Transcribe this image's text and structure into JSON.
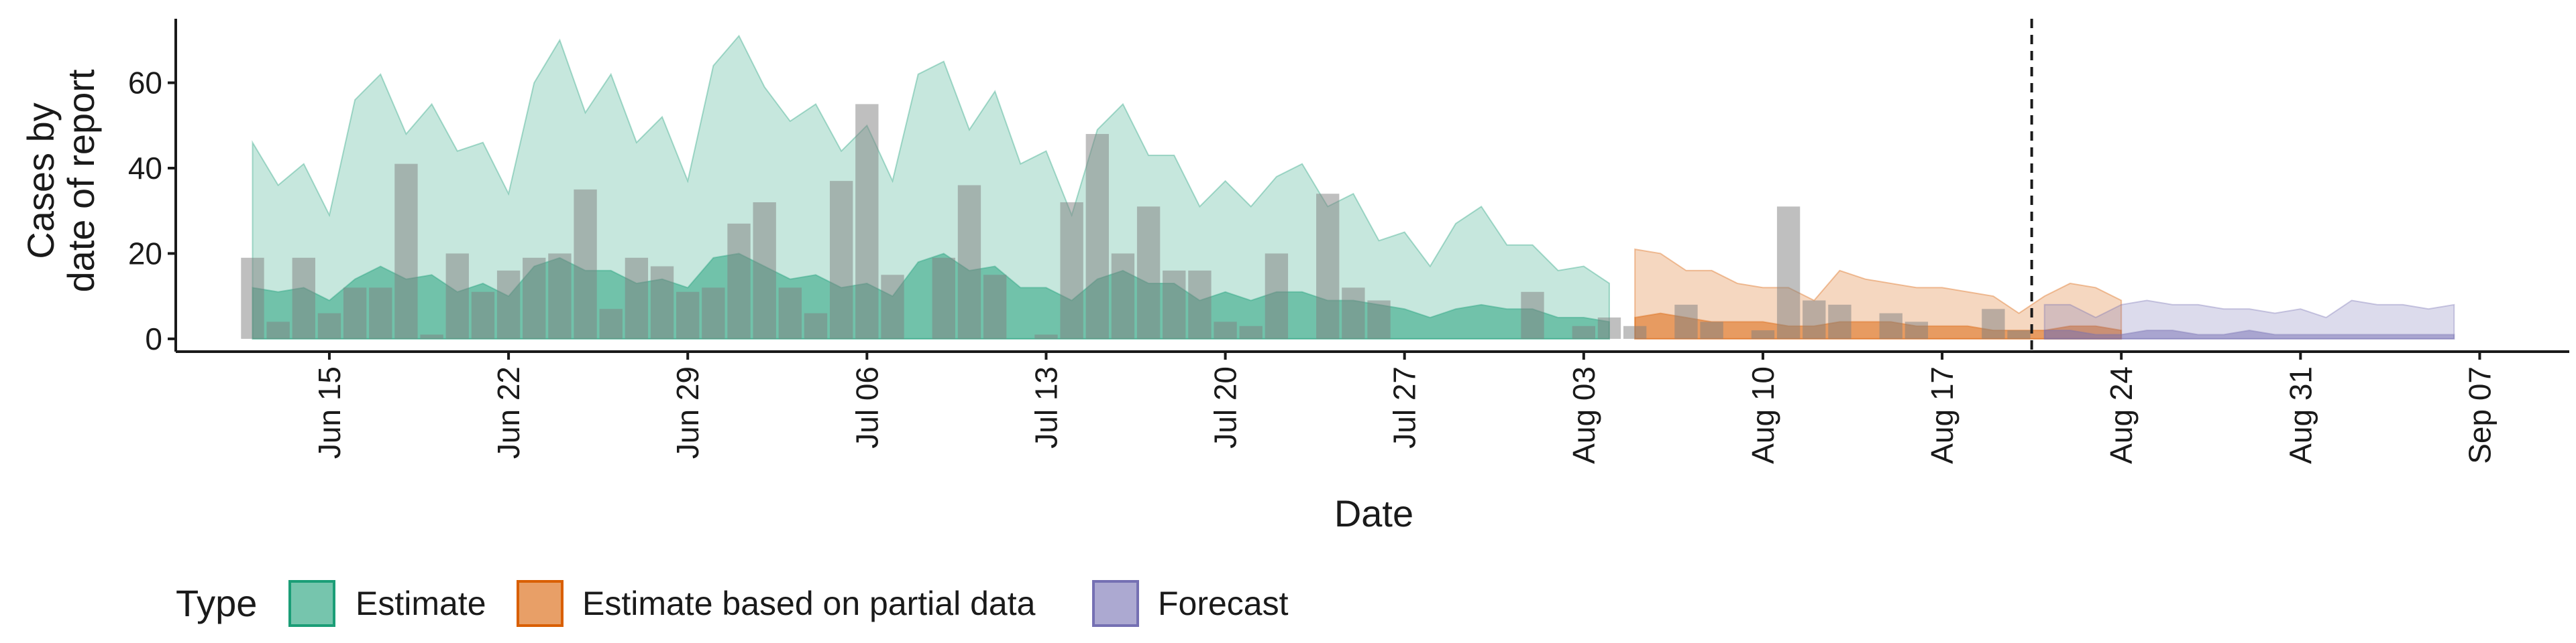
{
  "chart_data": {
    "type": "area",
    "title": "",
    "xlabel": "Date",
    "ylabel": [
      "Cases by",
      "date of report"
    ],
    "ylim": [
      -3,
      75
    ],
    "yticks": [
      0,
      20,
      40,
      60
    ],
    "x_start": "2020-06-12",
    "xlim_days": [
      -3,
      90.5
    ],
    "xticks": [
      {
        "label": "Jun 15",
        "day": 3
      },
      {
        "label": "Jun 22",
        "day": 10
      },
      {
        "label": "Jun 29",
        "day": 17
      },
      {
        "label": "Jul 06",
        "day": 24
      },
      {
        "label": "Jul 13",
        "day": 31
      },
      {
        "label": "Jul 20",
        "day": 38
      },
      {
        "label": "Jul 27",
        "day": 45
      },
      {
        "label": "Aug 03",
        "day": 52
      },
      {
        "label": "Aug 10",
        "day": 59
      },
      {
        "label": "Aug 17",
        "day": 66
      },
      {
        "label": "Aug 24",
        "day": 73
      },
      {
        "label": "Aug 31",
        "day": 80
      },
      {
        "label": "Sep 07",
        "day": 87
      }
    ],
    "forecast_divider_day": 69.5,
    "reported_cases": [
      19,
      4,
      19,
      6,
      12,
      12,
      41,
      1,
      20,
      11,
      16,
      19,
      20,
      35,
      7,
      19,
      17,
      11,
      12,
      27,
      32,
      12,
      6,
      37,
      55,
      15,
      0,
      19,
      36,
      15,
      0,
      1,
      32,
      48,
      20,
      31,
      16,
      16,
      4,
      3,
      20,
      0,
      34,
      12,
      9,
      0,
      0,
      0,
      0,
      0,
      11,
      0,
      3,
      5,
      3,
      0,
      8,
      4,
      0,
      2,
      31,
      9,
      8,
      0,
      6,
      4,
      0,
      0,
      7,
      2
    ],
    "series": [
      {
        "name": "Estimate",
        "color": "#1b9e77",
        "start_day": 0,
        "upper_90": [
          46,
          36,
          41,
          29,
          56,
          62,
          48,
          55,
          44,
          46,
          34,
          60,
          70,
          53,
          62,
          46,
          52,
          37,
          64,
          71,
          59,
          51,
          55,
          44,
          50,
          37,
          62,
          65,
          49,
          58,
          41,
          44,
          29,
          49,
          55,
          43,
          43,
          31,
          37,
          31,
          38,
          41,
          31,
          34,
          23,
          25,
          17,
          27,
          31,
          22,
          22,
          16,
          17,
          13
        ],
        "upper_50": [
          12,
          11,
          12,
          9,
          14,
          17,
          14,
          15,
          11,
          13,
          10,
          17,
          19,
          16,
          16,
          13,
          14,
          12,
          19,
          20,
          17,
          14,
          15,
          12,
          13,
          10,
          18,
          20,
          16,
          17,
          12,
          12,
          9,
          14,
          16,
          13,
          13,
          9,
          11,
          9,
          11,
          11,
          9,
          9,
          8,
          7,
          5,
          7,
          8,
          7,
          7,
          5,
          5,
          4
        ]
      },
      {
        "name": "Estimate based on partial data",
        "color": "#d95f02",
        "start_day": 54,
        "upper_90": [
          21,
          20,
          16,
          16,
          13,
          12,
          12,
          9,
          16,
          14,
          13,
          12,
          12,
          11,
          10,
          6,
          10,
          13,
          12,
          9
        ],
        "upper_50": [
          5,
          6,
          5,
          4,
          4,
          4,
          3,
          3,
          4,
          4,
          4,
          3,
          3,
          3,
          2,
          2,
          2,
          3,
          3,
          2
        ]
      },
      {
        "name": "Forecast",
        "color": "#7570b3",
        "start_day": 70,
        "upper_90": [
          8,
          8,
          5,
          8,
          9,
          8,
          8,
          7,
          7,
          6,
          7,
          5,
          9,
          8,
          8,
          7,
          8
        ],
        "upper_50": [
          2,
          2,
          1,
          1,
          2,
          2,
          1,
          1,
          2,
          1,
          1,
          1,
          1,
          1,
          1,
          1,
          1
        ]
      }
    ],
    "legend": {
      "title": "Type",
      "placement": "bottom-left",
      "items": [
        "Estimate",
        "Estimate based on partial data",
        "Forecast"
      ]
    }
  }
}
